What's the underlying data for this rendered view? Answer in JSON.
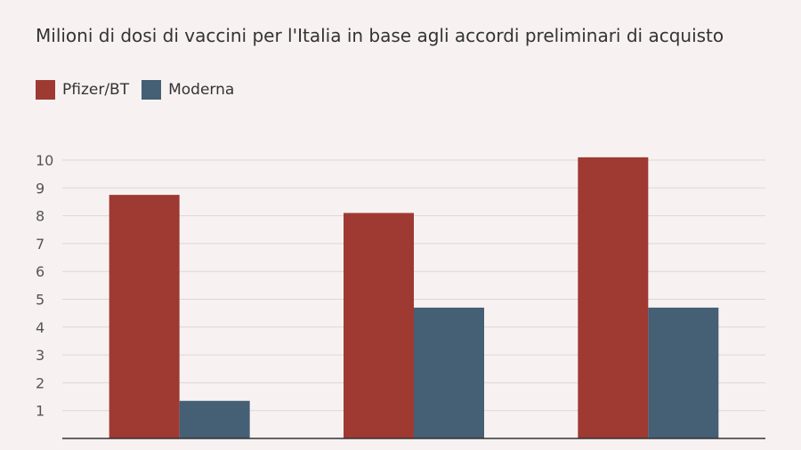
{
  "chart_data": {
    "type": "bar",
    "title": "Milioni di dosi di vaccini per l'Italia in base agli accordi preliminari di acquisto",
    "xlabel": "",
    "ylabel": "",
    "categories": [
      "",
      "",
      ""
    ],
    "series": [
      {
        "name": "Pfizer/BT",
        "color": "#9e3a32",
        "values": [
          8.75,
          8.1,
          10.1
        ]
      },
      {
        "name": "Moderna",
        "color": "#455f74",
        "values": [
          1.35,
          4.7,
          4.7
        ]
      }
    ],
    "ylim": [
      0,
      10
    ],
    "yticks": [
      1,
      2,
      3,
      4,
      5,
      6,
      7,
      8,
      9,
      10
    ],
    "grid": true,
    "legend_position": "top-left"
  }
}
